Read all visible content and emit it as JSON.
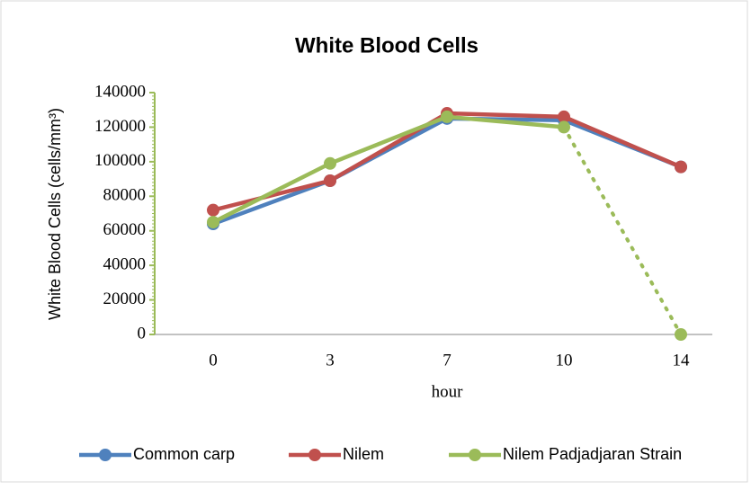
{
  "chart_data": {
    "type": "line",
    "title": "White Blood Cells",
    "x_label": "hour",
    "y_label": "White Blood Cells (cells/mm³)",
    "categories": [
      "0",
      "3",
      "7",
      "10",
      "14"
    ],
    "series": [
      {
        "name": "Common carp",
        "color": "#4f81bd",
        "values": [
          64000,
          89000,
          125000,
          124000,
          97000
        ]
      },
      {
        "name": "Nilem",
        "color": "#c0504d",
        "values": [
          72000,
          89000,
          128000,
          126000,
          97000
        ]
      },
      {
        "name": "Nilem Padjadjaran Strain",
        "color": "#9bbb59",
        "values": [
          65000,
          99000,
          126000,
          120000,
          0
        ],
        "last_segment": "dotted"
      }
    ],
    "ylim": [
      0,
      140000
    ],
    "yticks": [
      0,
      20000,
      40000,
      60000,
      80000,
      100000,
      120000,
      140000
    ],
    "legend": "bottom"
  }
}
